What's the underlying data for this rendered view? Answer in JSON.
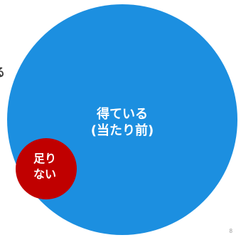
{
  "slide": {
    "edge_text": "る",
    "large_circle": {
      "line1": "得ている",
      "line2": "(当たり前)",
      "color": "#1c8fe0"
    },
    "small_circle": {
      "line1": "足り",
      "line2": "ない",
      "color": "#c00000"
    },
    "page_number": "8"
  }
}
